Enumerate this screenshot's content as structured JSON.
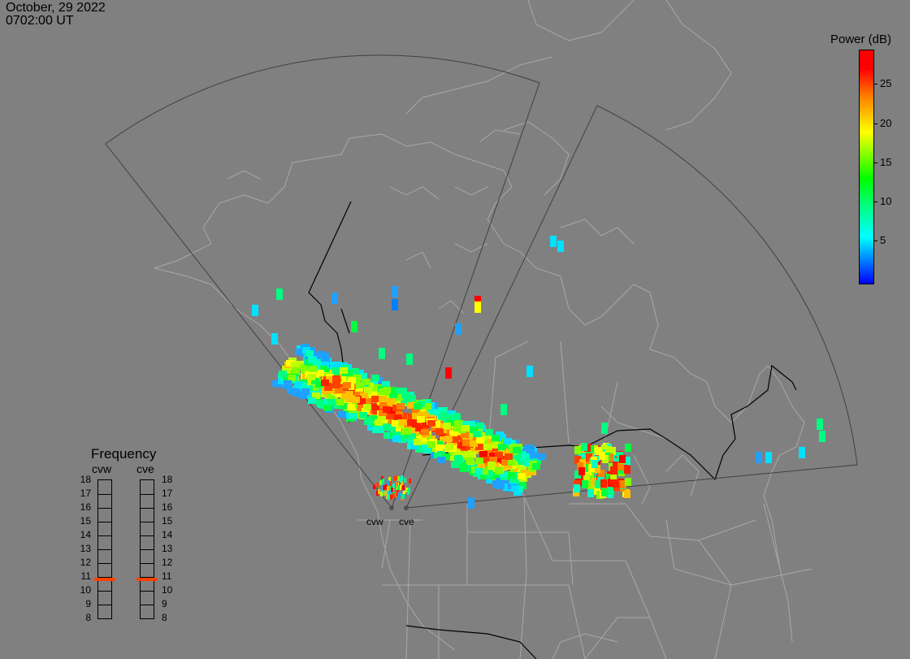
{
  "header": {
    "date": "October, 29 2022",
    "time": "0702:00 UT"
  },
  "colorbar": {
    "title": "Power (dB)",
    "ticks": [
      "25",
      "20",
      "15",
      "10",
      "5"
    ],
    "tick_values": [
      25,
      20,
      15,
      10,
      5
    ],
    "range": [
      0,
      30
    ]
  },
  "frequency_panel": {
    "title": "Frequency",
    "radars": [
      {
        "name": "cvw",
        "selected_mhz": 10.8
      },
      {
        "name": "cve",
        "selected_mhz": 10.8
      }
    ],
    "labels": [
      "18",
      "17",
      "16",
      "15",
      "14",
      "13",
      "12",
      "11",
      "10",
      "9",
      "8"
    ],
    "min_mhz": 8,
    "max_mhz": 18,
    "marker_color": "#ff4000"
  },
  "map": {
    "radar_labels": [
      "cvw",
      "cve"
    ],
    "background": "#808080",
    "coastline_color": "#a8a8a8",
    "fov_color": "#404040"
  }
}
